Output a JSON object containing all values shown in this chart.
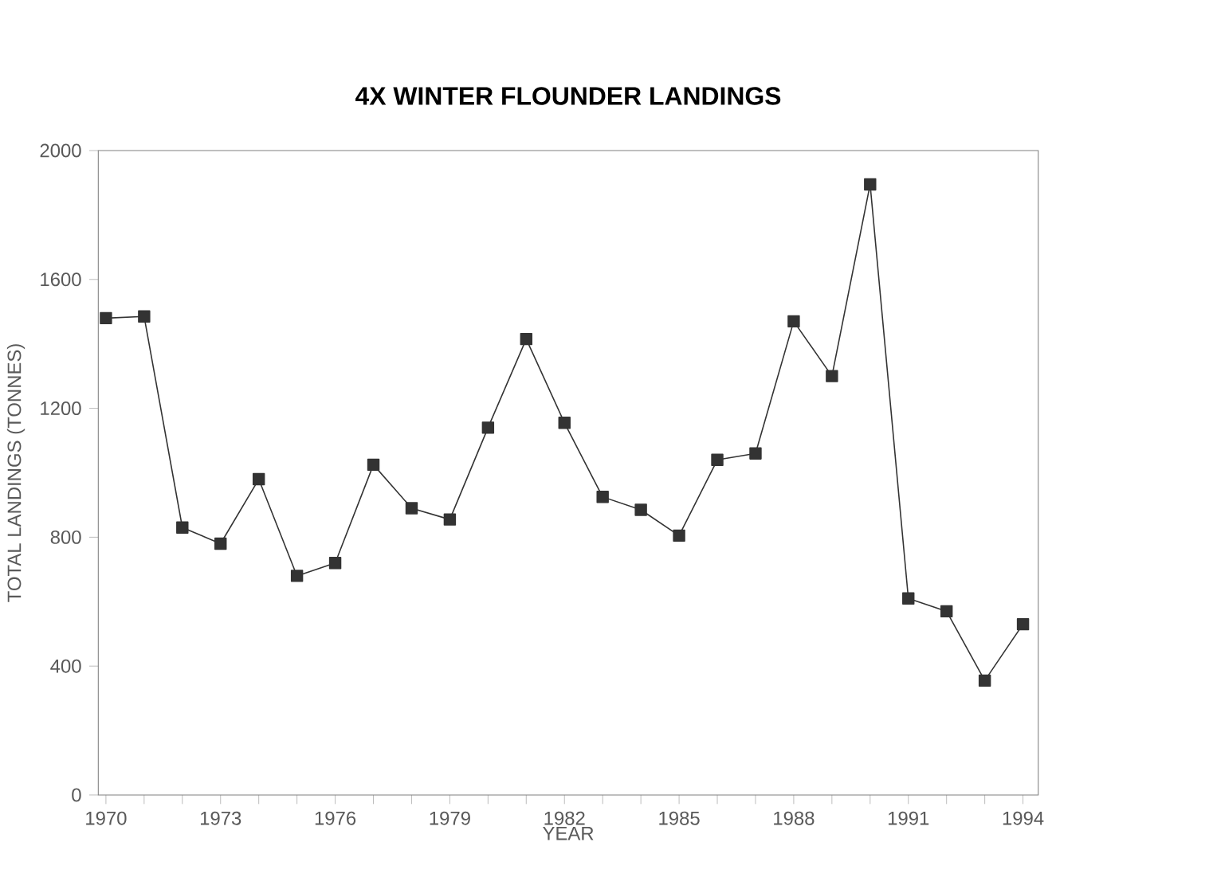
{
  "chart_data": {
    "type": "line",
    "title": "4X  WINTER FLOUNDER LANDINGS",
    "xlabel": "YEAR",
    "ylabel": "TOTAL LANDINGS (TONNES)",
    "x": [
      1970,
      1971,
      1972,
      1973,
      1974,
      1975,
      1976,
      1977,
      1978,
      1979,
      1980,
      1981,
      1982,
      1983,
      1984,
      1985,
      1986,
      1987,
      1988,
      1989,
      1990,
      1991,
      1992,
      1993,
      1994
    ],
    "series": [
      {
        "color": "#333333",
        "values": [
          1480,
          1485,
          830,
          780,
          980,
          680,
          720,
          1025,
          890,
          855,
          1140,
          1415,
          1155,
          925,
          885,
          805,
          1040,
          1060,
          1470,
          1300,
          1895,
          610,
          570,
          355,
          530
        ]
      }
    ],
    "xlim": [
      1969.8,
      1994.4
    ],
    "ylim": [
      0,
      2000
    ],
    "xticks": [
      1970,
      {
        "value": 1971,
        "label": null
      },
      {
        "value": 1972,
        "label": null
      },
      1973,
      {
        "value": 1974,
        "label": null
      },
      {
        "value": 1975,
        "label": null
      },
      1976,
      {
        "value": 1977,
        "label": null
      },
      {
        "value": 1978,
        "label": null
      },
      1979,
      {
        "value": 1980,
        "label": null
      },
      {
        "value": 1981,
        "label": null
      },
      1982,
      {
        "value": 1983,
        "label": null
      },
      {
        "value": 1984,
        "label": null
      },
      1985,
      {
        "value": 1986,
        "label": null
      },
      {
        "value": 1987,
        "label": null
      },
      1988,
      {
        "value": 1989,
        "label": null
      },
      {
        "value": 1990,
        "label": null
      },
      1991,
      {
        "value": 1992,
        "label": null
      },
      {
        "value": 1993,
        "label": null
      },
      1994
    ],
    "yticks": [
      0,
      400,
      800,
      1200,
      1600,
      2000
    ],
    "marker": "square",
    "line_style": "solid",
    "grid": false,
    "legend": false
  }
}
